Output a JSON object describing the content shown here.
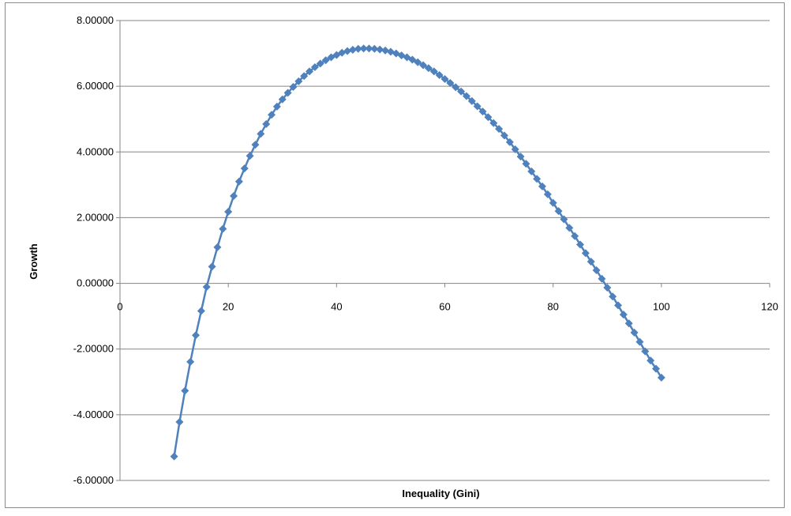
{
  "chart_data": {
    "type": "line",
    "title": "",
    "xlabel": "Inequality (Gini)",
    "ylabel": "Growth",
    "xlim": [
      0,
      120
    ],
    "ylim": [
      -6,
      8
    ],
    "x_ticks": [
      "0",
      "20",
      "40",
      "60",
      "80",
      "100",
      "120"
    ],
    "y_ticks": [
      "8.00000",
      "6.00000",
      "4.00000",
      "2.00000",
      "0.00000",
      "-2.00000",
      "-4.00000",
      "-6.00000"
    ],
    "grid": "horizontal",
    "legend": "none",
    "marker": "diamond",
    "series": [
      {
        "color": "#4F81BD",
        "x": [
          10,
          11,
          12,
          13,
          14,
          15,
          16,
          17,
          18,
          19,
          20,
          21,
          22,
          23,
          24,
          25,
          26,
          27,
          28,
          29,
          30,
          31,
          32,
          33,
          34,
          35,
          36,
          37,
          38,
          39,
          40,
          41,
          42,
          43,
          44,
          45,
          46,
          47,
          48,
          49,
          50,
          51,
          52,
          53,
          54,
          55,
          56,
          57,
          58,
          59,
          60,
          61,
          62,
          63,
          64,
          65,
          66,
          67,
          68,
          69,
          70,
          71,
          72,
          73,
          74,
          75,
          76,
          77,
          78,
          79,
          80,
          81,
          82,
          83,
          84,
          85,
          86,
          87,
          88,
          89,
          90,
          91,
          92,
          93,
          94,
          95,
          96,
          97,
          98,
          99,
          100
        ],
        "y": [
          -5.27,
          -4.22,
          -3.27,
          -2.39,
          -1.58,
          -0.84,
          -0.11,
          0.51,
          1.1,
          1.66,
          2.18,
          2.66,
          3.1,
          3.5,
          3.88,
          4.22,
          4.55,
          4.85,
          5.13,
          5.38,
          5.6,
          5.8,
          5.98,
          6.15,
          6.31,
          6.45,
          6.58,
          6.69,
          6.79,
          6.88,
          6.95,
          7.02,
          7.07,
          7.11,
          7.14,
          7.15,
          7.15,
          7.14,
          7.12,
          7.09,
          7.05,
          7.0,
          6.94,
          6.88,
          6.81,
          6.73,
          6.64,
          6.55,
          6.45,
          6.34,
          6.22,
          6.1,
          5.97,
          5.84,
          5.7,
          5.55,
          5.39,
          5.23,
          5.06,
          4.88,
          4.7,
          4.5,
          4.3,
          4.08,
          3.86,
          3.64,
          3.41,
          3.18,
          2.95,
          2.71,
          2.45,
          2.2,
          1.95,
          1.69,
          1.44,
          1.18,
          0.92,
          0.66,
          0.4,
          0.14,
          -0.13,
          -0.4,
          -0.67,
          -0.95,
          -1.22,
          -1.5,
          -1.78,
          -2.07,
          -2.35,
          -2.6,
          -2.87
        ]
      }
    ]
  }
}
